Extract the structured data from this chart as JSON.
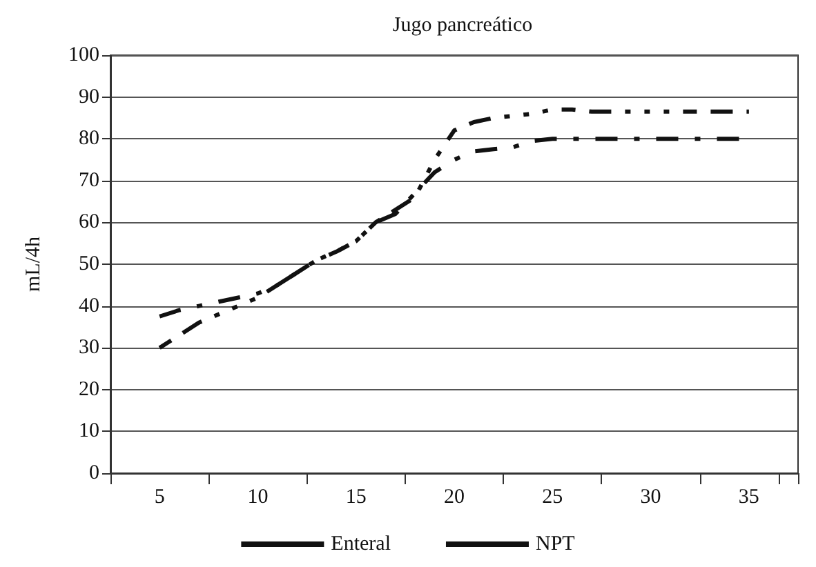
{
  "chart_data": {
    "type": "line",
    "title": "Jugo pancreático",
    "ylabel": "mL/4h",
    "categories": [
      null,
      null,
      "5",
      null,
      null,
      null,
      null,
      "10",
      null,
      null,
      null,
      null,
      "15",
      null,
      null,
      null,
      null,
      "20",
      null,
      null,
      null,
      null,
      "25",
      null,
      null,
      null,
      null,
      "30",
      null,
      null,
      null,
      null,
      "35",
      null,
      null
    ],
    "series": [
      {
        "name": "Enteral",
        "color": "#111111",
        "line_style": "dotted",
        "values": [
          null,
          null,
          30,
          33,
          36,
          38,
          40,
          42,
          45,
          48,
          51,
          53,
          55.5,
          60,
          63,
          66,
          75,
          82,
          84,
          85,
          85.5,
          86,
          87,
          87,
          86.5,
          86.5,
          86.5,
          86.5,
          86.5,
          86.5,
          86.5,
          86.5,
          86.5,
          null,
          null
        ]
      },
      {
        "name": "NPT",
        "color": "#111111",
        "line_style": "dashed",
        "values": [
          null,
          null,
          37.5,
          39,
          40,
          41,
          42,
          43,
          45,
          48,
          51,
          53,
          55.5,
          60,
          62,
          67,
          72,
          75,
          77,
          77.5,
          78,
          79.5,
          80,
          80,
          80,
          80,
          80,
          80,
          80,
          80,
          80,
          80,
          80,
          null,
          null
        ]
      }
    ],
    "ylim": [
      0,
      100
    ],
    "yticks": [
      0,
      10,
      20,
      30,
      40,
      50,
      60,
      70,
      80,
      90,
      100
    ],
    "grid": "y",
    "legend": "bottom",
    "marker": "none"
  }
}
